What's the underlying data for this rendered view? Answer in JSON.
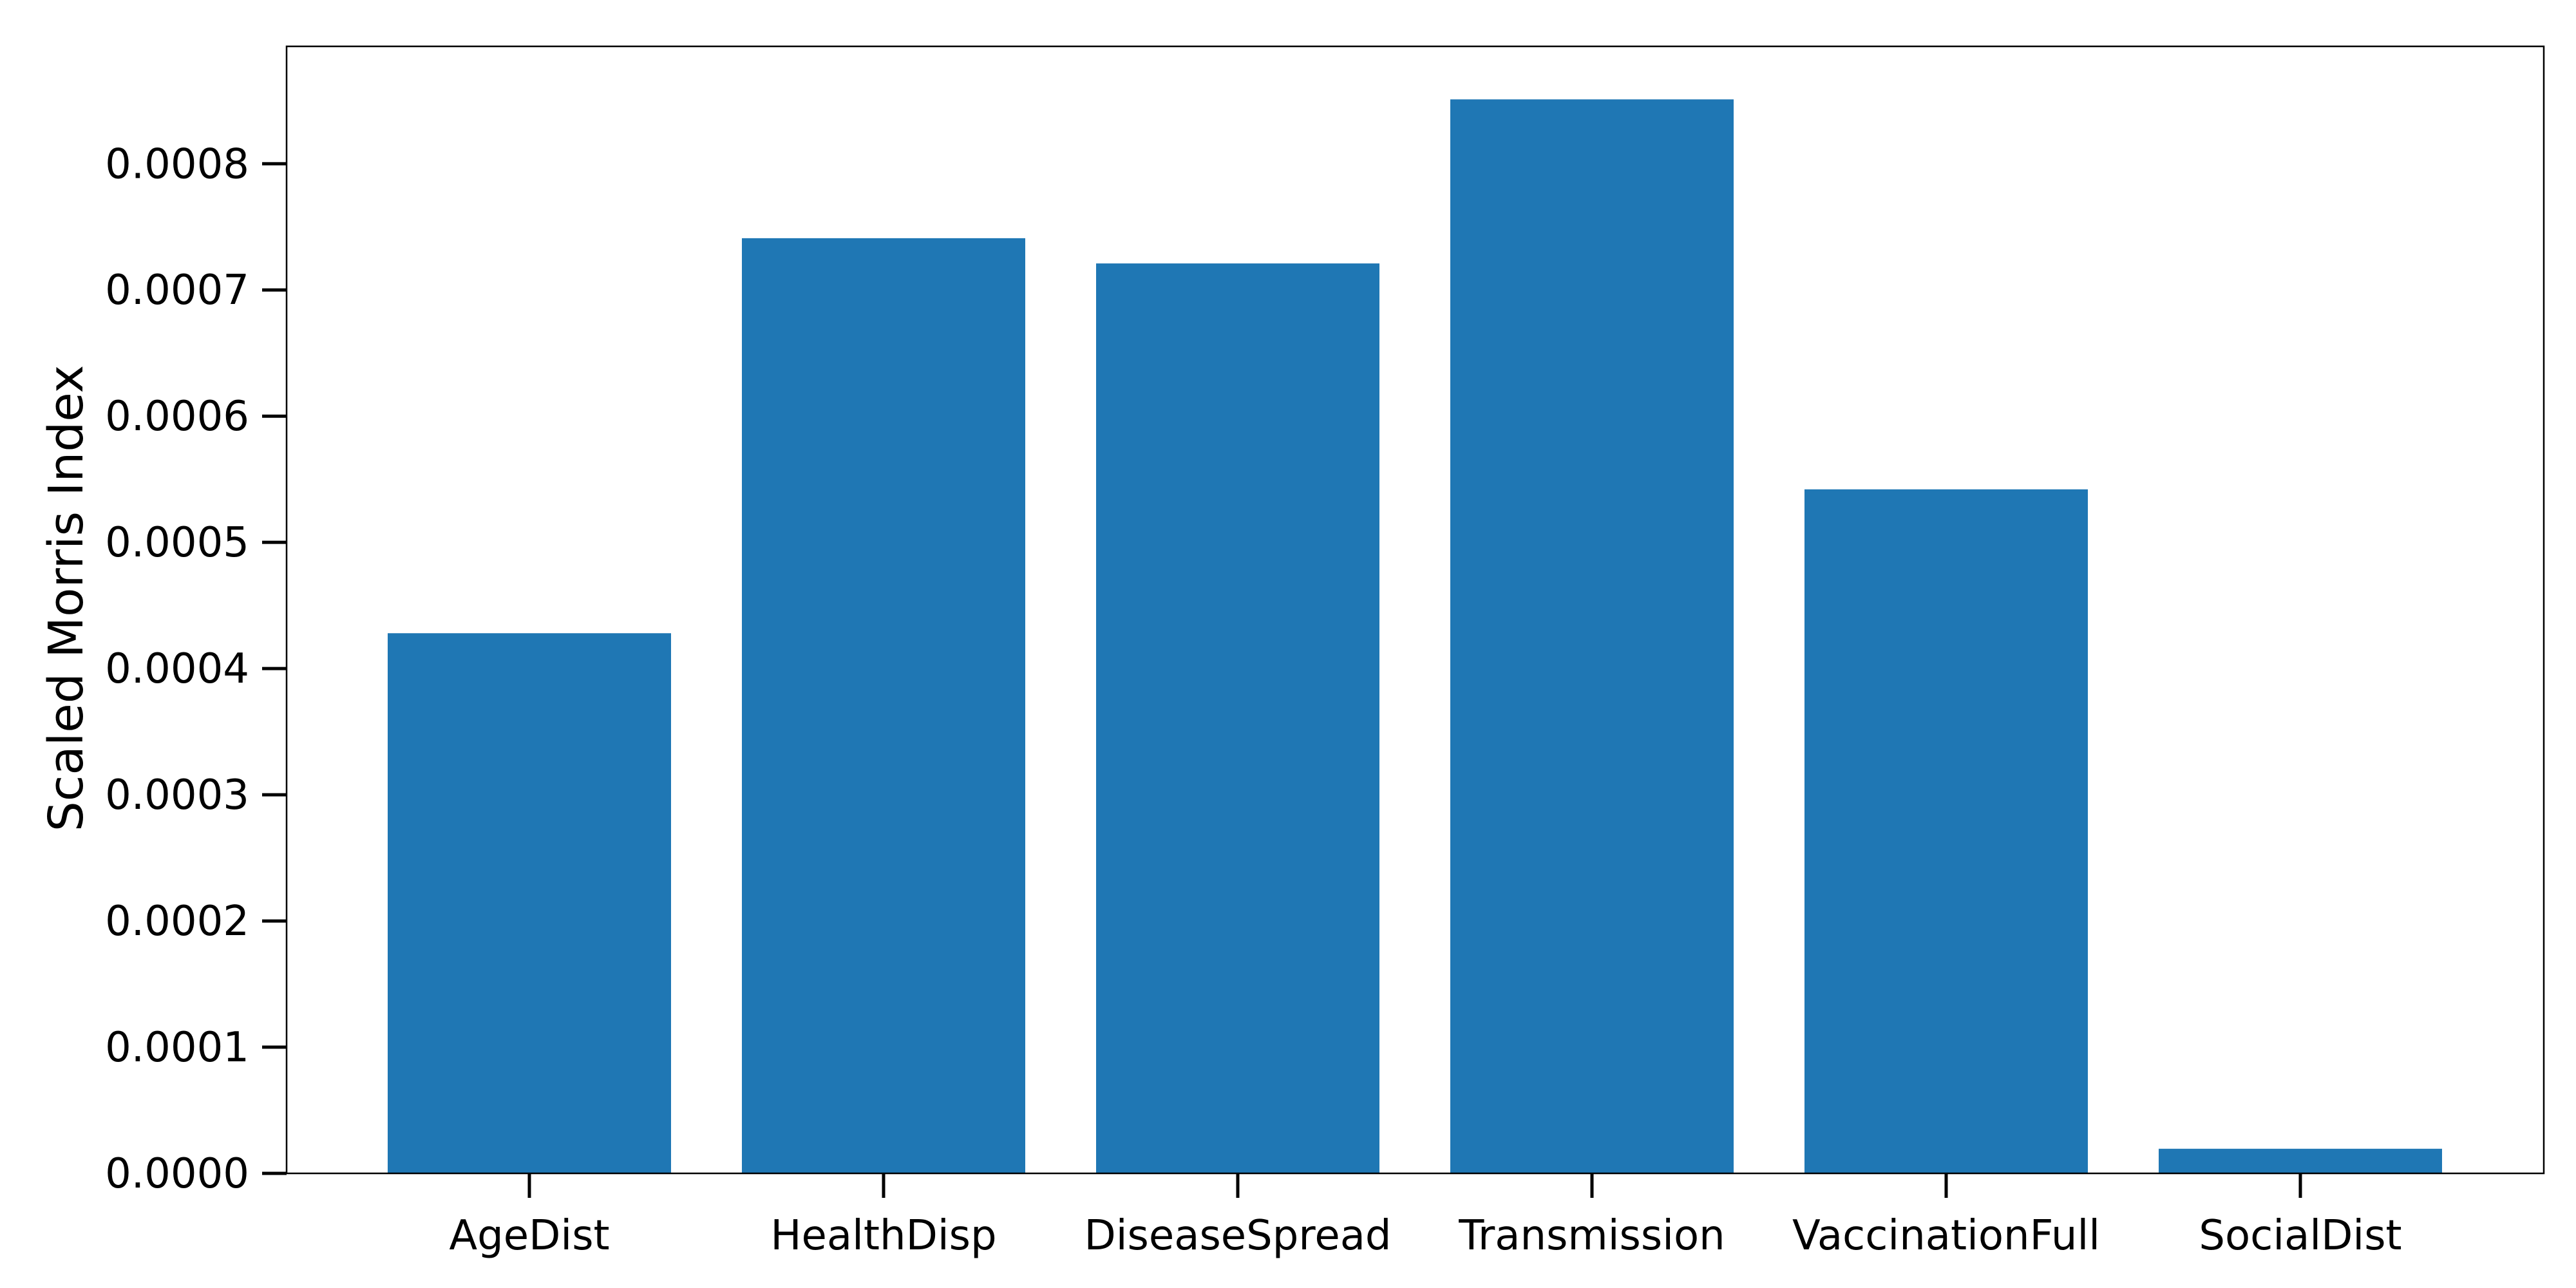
{
  "chart_data": {
    "type": "bar",
    "categories": [
      "AgeDist",
      "HealthDisp",
      "DiseaseSpread",
      "Transmission",
      "VaccinationFull",
      "SocialDist"
    ],
    "values": [
      0.000428,
      0.000741,
      0.000721,
      0.000851,
      0.000542,
      1.95e-05
    ],
    "ylabel": "Scaled Morris Index",
    "xlabel": "",
    "ylim": [
      0,
      0.000893
    ],
    "yticks": [
      "0.0000",
      "0.0001",
      "0.0002",
      "0.0003",
      "0.0004",
      "0.0005",
      "0.0006",
      "0.0007",
      "0.0008"
    ],
    "ytick_values": [
      0,
      0.0001,
      0.0002,
      0.0003,
      0.0004,
      0.0005,
      0.0006,
      0.0007,
      0.0008
    ],
    "grid": false,
    "bar_color": "#1f77b4"
  }
}
